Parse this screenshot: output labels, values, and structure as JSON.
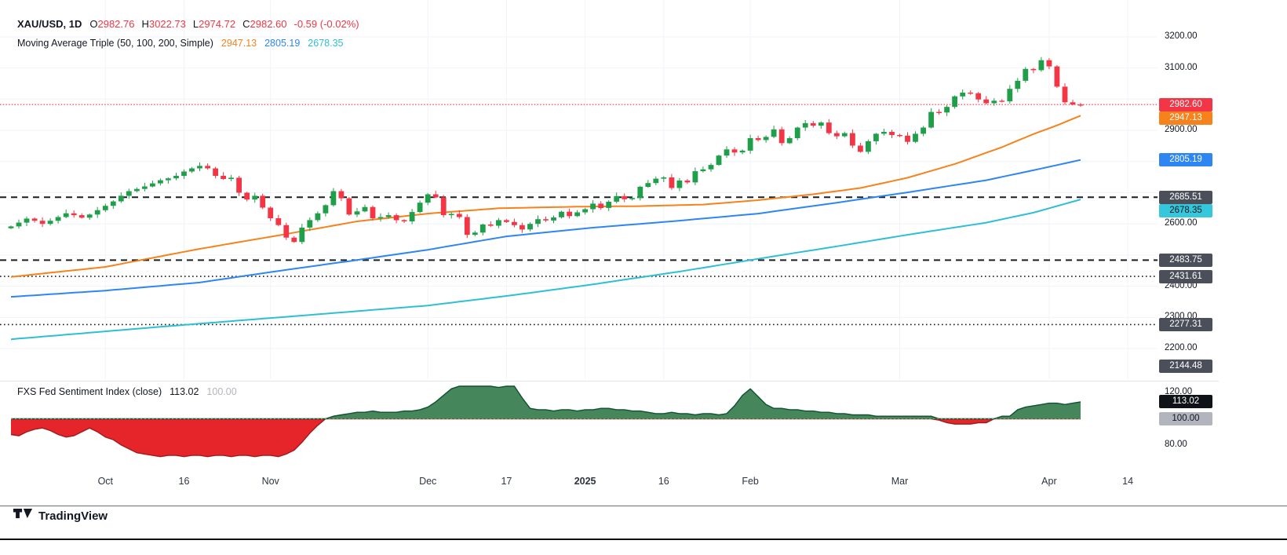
{
  "legend": {
    "symbol": "XAU/USD, 1D",
    "ohlc": {
      "o_label": "O",
      "o": "2982.76",
      "h_label": "H",
      "h": "3022.73",
      "l_label": "L",
      "l": "2974.72",
      "c_label": "C",
      "c": "2982.60",
      "change": "-0.59 (-0.02%)"
    },
    "ma": {
      "title": "Moving Average Triple (50, 100, 200, Simple)",
      "ma50": "2947.13",
      "ma100": "2805.19",
      "ma200": "2678.35"
    },
    "sentiment": {
      "title": "FXS Fed Sentiment Index (close)",
      "value": "113.02",
      "baseline": "100.00"
    }
  },
  "footer": {
    "brand": "TradingView"
  },
  "chart_data": [
    {
      "type": "candlestick",
      "title": "XAU/USD Daily with Moving Average Triple (50, 100, 200, Simple)",
      "symbol": "XAU/USD",
      "timeframe": "1D",
      "last_ohlc": {
        "open": 2982.76,
        "high": 3022.73,
        "low": 2974.72,
        "close": 2982.6,
        "change": -0.59,
        "change_pct": "-0.02%"
      },
      "up_color": "#209F4B",
      "down_color": "#F23645",
      "closes": [
        2592,
        2604,
        2617,
        2610,
        2600,
        2610,
        2622,
        2634,
        2628,
        2620,
        2630,
        2644,
        2658,
        2672,
        2690,
        2705,
        2712,
        2720,
        2730,
        2740,
        2746,
        2754,
        2768,
        2778,
        2786,
        2778,
        2754,
        2744,
        2748,
        2700,
        2678,
        2690,
        2652,
        2618,
        2596,
        2556,
        2542,
        2588,
        2612,
        2634,
        2660,
        2705,
        2682,
        2630,
        2640,
        2654,
        2618,
        2622,
        2628,
        2612,
        2608,
        2638,
        2668,
        2695,
        2685,
        2628,
        2632,
        2622,
        2565,
        2572,
        2598,
        2594,
        2612,
        2606,
        2596,
        2582,
        2600,
        2615,
        2611,
        2621,
        2639,
        2625,
        2637,
        2647,
        2665,
        2651,
        2671,
        2689,
        2679,
        2683,
        2719,
        2731,
        2745,
        2749,
        2715,
        2739,
        2733,
        2769,
        2775,
        2789,
        2819,
        2839,
        2829,
        2835,
        2875,
        2869,
        2879,
        2903,
        2859,
        2875,
        2909,
        2923,
        2915,
        2925,
        2891,
        2881,
        2891,
        2851,
        2831,
        2865,
        2889,
        2895,
        2885,
        2883,
        2863,
        2889,
        2909,
        2959,
        2957,
        2975,
        3009,
        3021,
        3019,
        2999,
        2987,
        2995,
        2993,
        3033,
        3059,
        3097,
        3093,
        3125,
        3105,
        3040,
        2990,
        2983,
        2982.6
      ],
      "moving_averages": [
        {
          "name": "SMA 50",
          "color": "#F7821C",
          "last": 2947.13,
          "points": [
            [
              0,
              2430
            ],
            [
              12,
              2462
            ],
            [
              24,
              2520
            ],
            [
              34,
              2563
            ],
            [
              44,
              2608
            ],
            [
              53,
              2633
            ],
            [
              62,
              2650
            ],
            [
              72,
              2655
            ],
            [
              80,
              2657
            ],
            [
              88,
              2662
            ],
            [
              95,
              2676
            ],
            [
              102,
              2695
            ],
            [
              108,
              2715
            ],
            [
              114,
              2748
            ],
            [
              120,
              2792
            ],
            [
              126,
              2846
            ],
            [
              130,
              2888
            ],
            [
              133,
              2916
            ],
            [
              136,
              2947.13
            ]
          ]
        },
        {
          "name": "SMA 100",
          "color": "#2E86F3",
          "last": 2805.19,
          "points": [
            [
              0,
              2366
            ],
            [
              12,
              2386
            ],
            [
              24,
              2412
            ],
            [
              34,
              2449
            ],
            [
              44,
              2484
            ],
            [
              53,
              2517
            ],
            [
              63,
              2560
            ],
            [
              74,
              2588
            ],
            [
              84,
              2608
            ],
            [
              95,
              2633
            ],
            [
              105,
              2668
            ],
            [
              114,
              2701
            ],
            [
              124,
              2740
            ],
            [
              130,
              2772
            ],
            [
              136,
              2805.19
            ]
          ]
        },
        {
          "name": "SMA 200",
          "color": "#2FBFD4",
          "last": 2678.35,
          "points": [
            [
              0,
              2230
            ],
            [
              20,
              2272
            ],
            [
              40,
              2312
            ],
            [
              53,
              2338
            ],
            [
              64,
              2372
            ],
            [
              74,
              2406
            ],
            [
              85,
              2447
            ],
            [
              95,
              2488
            ],
            [
              105,
              2528
            ],
            [
              114,
              2565
            ],
            [
              124,
              2604
            ],
            [
              130,
              2636
            ],
            [
              136,
              2678.35
            ]
          ]
        }
      ],
      "levels": [
        {
          "value": 2982.6,
          "style": "dotted-red",
          "color": "#F23645",
          "badge_bg": "#F23645",
          "badge_fg": "#FFFFFF"
        },
        {
          "value": 2685.51,
          "style": "dashed",
          "color": "#1C1E24",
          "badge_bg": "#4A4F5A",
          "badge_fg": "#FFFFFF"
        },
        {
          "value": 2483.75,
          "style": "dashed",
          "color": "#1C1E24",
          "badge_bg": "#4A4F5A",
          "badge_fg": "#FFFFFF"
        },
        {
          "value": 2431.61,
          "style": "dotted",
          "color": "#1C1E24",
          "badge_bg": "#4A4F5A",
          "badge_fg": "#FFFFFF"
        },
        {
          "value": 2277.31,
          "style": "dotted",
          "color": "#1C1E24",
          "badge_bg": "#4A4F5A",
          "badge_fg": "#FFFFFF"
        },
        {
          "value": 2144.48,
          "style": "none",
          "color": "#1C1E24",
          "badge_bg": "#4A4F5A",
          "badge_fg": "#FFFFFF"
        }
      ],
      "ma_badges": [
        {
          "value": 2947.13,
          "bg": "#F7821C",
          "fg": "#FFFFFF"
        },
        {
          "value": 2805.19,
          "bg": "#2E86F3",
          "fg": "#FFFFFF"
        },
        {
          "value": 2678.35,
          "bg": "#35C8DC",
          "fg": "#10141C"
        }
      ],
      "y_axis": {
        "min": 2102,
        "max": 3318,
        "grid_min": 2200,
        "grid_max": 3200,
        "grid_interval": 100,
        "visible_labels": [
          "3200.00",
          "3100.00",
          "2900.00",
          "2600.00",
          "2400.00",
          "2300.00",
          "2200.00"
        ]
      },
      "x_ticks": [
        {
          "label": "Oct",
          "day": 12
        },
        {
          "label": "16",
          "day": 22
        },
        {
          "label": "Nov",
          "day": 33
        },
        {
          "label": "Dec",
          "day": 53
        },
        {
          "label": "17",
          "day": 63
        },
        {
          "label": "2025",
          "day": 73,
          "bold": true
        },
        {
          "label": "16",
          "day": 83
        },
        {
          "label": "Feb",
          "day": 94
        },
        {
          "label": "Mar",
          "day": 113
        },
        {
          "label": "Apr",
          "day": 132
        },
        {
          "label": "14",
          "day": 142
        }
      ]
    },
    {
      "type": "area",
      "title": "FXS Fed Sentiment Index (close)",
      "baseline": 100,
      "last": 113.02,
      "pos_fill": "#45865A",
      "pos_stroke": "#0F5132",
      "neg_fill": "#E6252B",
      "neg_stroke": "#9E1B1B",
      "baseline_color": "#66A36C",
      "values": [
        88,
        87,
        90,
        92,
        93,
        91,
        88,
        86,
        87,
        90,
        93,
        90,
        86,
        84,
        80,
        77,
        74,
        73,
        72,
        71,
        72,
        72,
        71,
        72,
        72,
        71,
        72,
        72,
        71,
        72,
        72,
        71,
        72,
        72,
        71,
        73,
        76,
        82,
        89,
        95,
        100,
        102,
        103,
        104,
        105,
        105,
        106,
        105,
        105,
        105,
        106,
        106,
        107,
        109,
        113,
        118,
        123,
        125,
        125,
        125,
        125,
        125,
        124,
        125,
        125,
        116,
        108,
        107,
        107,
        106,
        107,
        107,
        106,
        107,
        107,
        108,
        108,
        107,
        107,
        106,
        106,
        105,
        104,
        104,
        105,
        104,
        104,
        103,
        104,
        104,
        103,
        104,
        110,
        118,
        123,
        117,
        111,
        108,
        108,
        107,
        107,
        106,
        106,
        105,
        105,
        104,
        104,
        103,
        103,
        103,
        102,
        102,
        102,
        102,
        102,
        102,
        102,
        102,
        99,
        97,
        96,
        96,
        96,
        97,
        97,
        100,
        102,
        102,
        107,
        109,
        110,
        111,
        112,
        112,
        111,
        112,
        113.02
      ],
      "y_axis": {
        "min": 60,
        "max": 128,
        "labels": [
          120,
          80
        ]
      },
      "badges": [
        {
          "value": 113.02,
          "bg": "#0F1318",
          "fg": "#FFFFFF"
        },
        {
          "value": 100.0,
          "bg": "#B2B5BE",
          "fg": "#131722"
        }
      ]
    }
  ]
}
